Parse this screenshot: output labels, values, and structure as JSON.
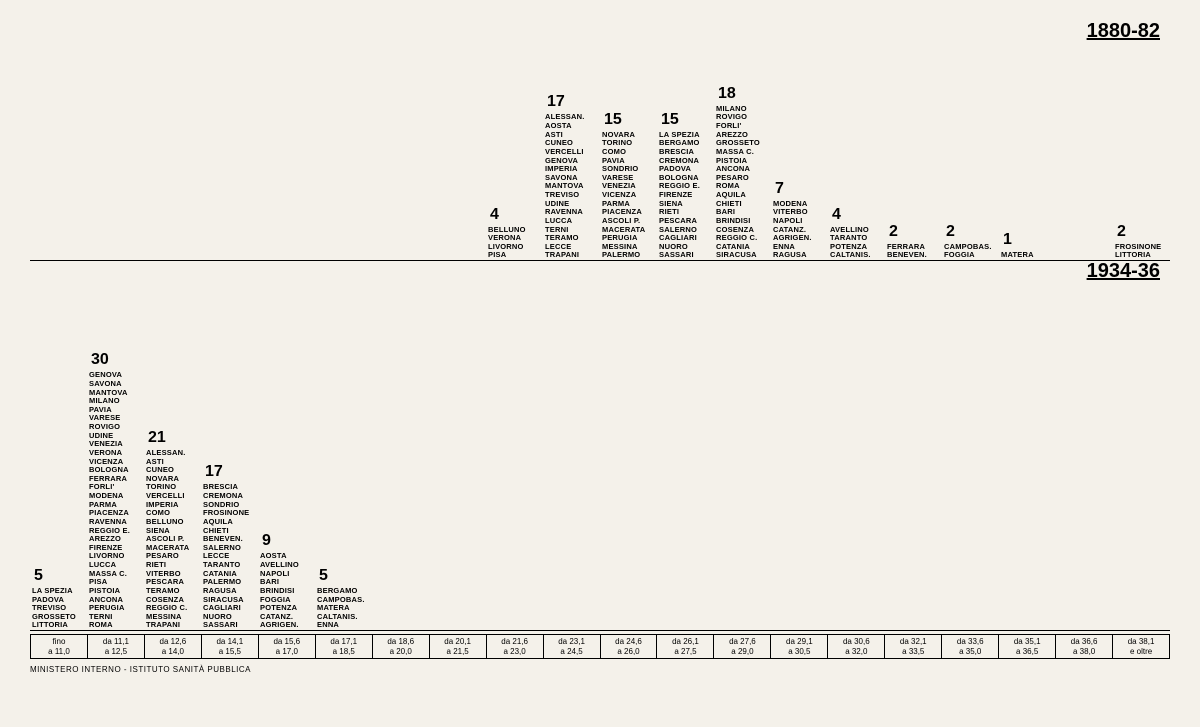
{
  "periods": {
    "top": "1880-82",
    "bottom": "1934-36"
  },
  "footer": "MINISTERO INTERNO - ISTITUTO SANITÀ PUBBLICA",
  "axis": [
    "fino a 11,0",
    "da 11,1 a 12,5",
    "da 12,6 a 14,0",
    "da 14,1 a 15,5",
    "da 15,6 a 17,0",
    "da 17,1 a 18,5",
    "da 18,6 a 20,0",
    "da 20,1 a 21,5",
    "da 21,6 a 23,0",
    "da 23,1 a 24,5",
    "da 24,6 a 26,0",
    "da 26,1 a 27,5",
    "da 27,6 a 29,0",
    "da 29,1 a 30,5",
    "da 30,6 a 32,0",
    "da 32,1 a 33,5",
    "da 33,6 a 35,0",
    "da 35,1 a 36,5",
    "da 36,6 a 38,0",
    "da 38,1 e oltre"
  ],
  "chart_top": [
    {
      "count": "",
      "items": []
    },
    {
      "count": "",
      "items": []
    },
    {
      "count": "",
      "items": []
    },
    {
      "count": "",
      "items": []
    },
    {
      "count": "",
      "items": []
    },
    {
      "count": "",
      "items": []
    },
    {
      "count": "",
      "items": []
    },
    {
      "count": "",
      "items": []
    },
    {
      "count": "4",
      "items": [
        "BELLUNO",
        "VERONA",
        "LIVORNO",
        "PISA"
      ]
    },
    {
      "count": "17",
      "items": [
        "ALESSAN.",
        "AOSTA",
        "ASTI",
        "CUNEO",
        "VERCELLI",
        "GENOVA",
        "IMPERIA",
        "SAVONA",
        "MANTOVA",
        "TREVISO",
        "UDINE",
        "RAVENNA",
        "LUCCA",
        "TERNI",
        "TERAMO",
        "LECCE",
        "TRAPANI"
      ]
    },
    {
      "count": "15",
      "items": [
        "NOVARA",
        "TORINO",
        "COMO",
        "PAVIA",
        "SONDRIO",
        "VARESE",
        "VENEZIA",
        "VICENZA",
        "PARMA",
        "PIACENZA",
        "ASCOLI P.",
        "MACERATA",
        "PERUGIA",
        "MESSINA",
        "PALERMO"
      ]
    },
    {
      "count": "15",
      "items": [
        "LA SPEZIA",
        "BERGAMO",
        "BRESCIA",
        "CREMONA",
        "PADOVA",
        "BOLOGNA",
        "REGGIO E.",
        "FIRENZE",
        "SIENA",
        "RIETI",
        "PESCARA",
        "SALERNO",
        "CAGLIARI",
        "NUORO",
        "SASSARI"
      ]
    },
    {
      "count": "18",
      "items": [
        "MILANO",
        "ROVIGO",
        "FORLI'",
        "AREZZO",
        "GROSSETO",
        "MASSA C.",
        "PISTOIA",
        "ANCONA",
        "PESARO",
        "ROMA",
        "AQUILA",
        "CHIETI",
        "BARI",
        "BRINDISI",
        "COSENZA",
        "REGGIO C.",
        "CATANIA",
        "SIRACUSA"
      ]
    },
    {
      "count": "7",
      "items": [
        "MODENA",
        "VITERBO",
        "NAPOLI",
        "CATANZ.",
        "AGRIGEN.",
        "ENNA",
        "RAGUSA"
      ]
    },
    {
      "count": "4",
      "items": [
        "AVELLINO",
        "TARANTO",
        "POTENZA",
        "CALTANIS."
      ]
    },
    {
      "count": "2",
      "items": [
        "FERRARA",
        "BENEVEN."
      ]
    },
    {
      "count": "2",
      "items": [
        "CAMPOBAS.",
        "FOGGIA"
      ]
    },
    {
      "count": "1",
      "items": [
        "MATERA"
      ]
    },
    {
      "count": "",
      "items": []
    },
    {
      "count": "2",
      "items": [
        "FROSINONE",
        "LITTORIA"
      ]
    }
  ],
  "chart_bottom": [
    {
      "count": "5",
      "items": [
        "LA SPEZIA",
        "PADOVA",
        "TREVISO",
        "GROSSETO",
        "LITTORIA"
      ]
    },
    {
      "count": "30",
      "items": [
        "GENOVA",
        "SAVONA",
        "MANTOVA",
        "MILANO",
        "PAVIA",
        "VARESE",
        "ROVIGO",
        "UDINE",
        "VENEZIA",
        "VERONA",
        "VICENZA",
        "BOLOGNA",
        "FERRARA",
        "FORLI'",
        "MODENA",
        "PARMA",
        "PIACENZA",
        "RAVENNA",
        "REGGIO E.",
        "AREZZO",
        "FIRENZE",
        "LIVORNO",
        "LUCCA",
        "MASSA C.",
        "PISA",
        "PISTOIA",
        "ANCONA",
        "PERUGIA",
        "TERNI",
        "ROMA"
      ]
    },
    {
      "count": "21",
      "items": [
        "ALESSAN.",
        "ASTI",
        "CUNEO",
        "NOVARA",
        "TORINO",
        "VERCELLI",
        "IMPERIA",
        "COMO",
        "BELLUNO",
        "SIENA",
        "ASCOLI P.",
        "MACERATA",
        "PESARO",
        "RIETI",
        "VITERBO",
        "PESCARA",
        "TERAMO",
        "COSENZA",
        "REGGIO C.",
        "MESSINA",
        "TRAPANI"
      ]
    },
    {
      "count": "17",
      "items": [
        "BRESCIA",
        "CREMONA",
        "SONDRIO",
        "FROSINONE",
        "AQUILA",
        "CHIETI",
        "BENEVEN.",
        "SALERNO",
        "LECCE",
        "TARANTO",
        "CATANIA",
        "PALERMO",
        "RAGUSA",
        "SIRACUSA",
        "CAGLIARI",
        "NUORO",
        "SASSARI"
      ]
    },
    {
      "count": "9",
      "items": [
        "AOSTA",
        "AVELLINO",
        "NAPOLI",
        "BARI",
        "BRINDISI",
        "FOGGIA",
        "POTENZA",
        "CATANZ.",
        "AGRIGEN."
      ]
    },
    {
      "count": "5",
      "items": [
        "BERGAMO",
        "CAMPOBAS.",
        "MATERA",
        "CALTANIS.",
        "ENNA"
      ]
    },
    {
      "count": "",
      "items": []
    },
    {
      "count": "",
      "items": []
    },
    {
      "count": "",
      "items": []
    },
    {
      "count": "",
      "items": []
    },
    {
      "count": "",
      "items": []
    },
    {
      "count": "",
      "items": []
    },
    {
      "count": "",
      "items": []
    },
    {
      "count": "",
      "items": []
    },
    {
      "count": "",
      "items": []
    },
    {
      "count": "",
      "items": []
    },
    {
      "count": "",
      "items": []
    },
    {
      "count": "",
      "items": []
    },
    {
      "count": "",
      "items": []
    },
    {
      "count": "",
      "items": []
    }
  ]
}
